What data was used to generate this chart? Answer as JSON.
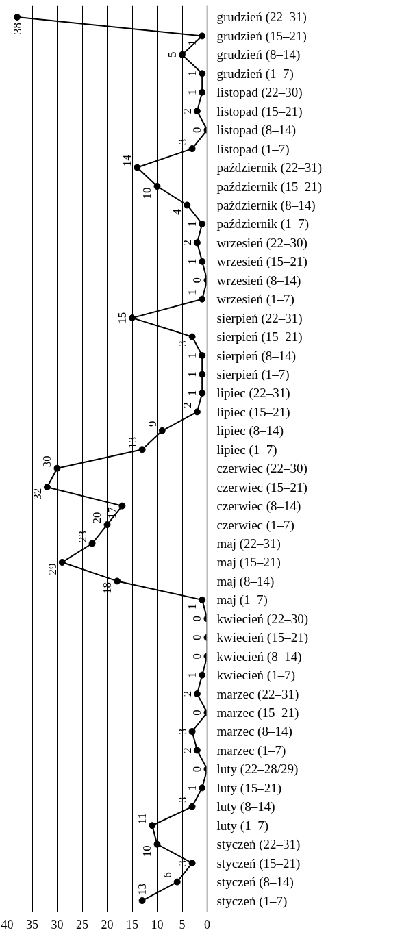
{
  "chart_data": {
    "type": "line",
    "orientation": "horizontal",
    "categories": [
      "grudzień (22–31)",
      "grudzień (15–21)",
      "grudzień (8–14)",
      "grudzień (1–7)",
      "listopad (22–30)",
      "listopad (15–21)",
      "listopad (8–14)",
      "listopad (1–7)",
      "październik (22–31)",
      "październik (15–21)",
      "październik (8–14)",
      "październik (1–7)",
      "wrzesień (22–30)",
      "wrzesień (15–21)",
      "wrzesień (8–14)",
      "wrzesień (1–7)",
      "sierpień (22–31)",
      "sierpień (15–21)",
      "sierpień (8–14)",
      "sierpień (1–7)",
      "lipiec (22–31)",
      "lipiec (15–21)",
      "lipiec (8–14)",
      "lipiec (1–7)",
      "czerwiec (22–30)",
      "czerwiec (15–21)",
      "czerwiec (8–14)",
      "czerwiec (1–7)",
      "maj (22–31)",
      "maj (15–21)",
      "maj (8–14)",
      "maj (1–7)",
      "kwiecień (22–30)",
      "kwiecień (15–21)",
      "kwiecień (8–14)",
      "kwiecień (1–7)",
      "marzec (22–31)",
      "marzec (15–21)",
      "marzec (8–14)",
      "marzec (1–7)",
      "luty (22–28/29)",
      "luty (15–21)",
      "luty (8–14)",
      "luty (1–7)",
      "styczeń (22–31)",
      "styczeń (15–21)",
      "styczeń (8–14)",
      "styczeń (1–7)"
    ],
    "series": [
      {
        "color": "#000000",
        "values": [
          38,
          1,
          5,
          1,
          1,
          2,
          0,
          3,
          14,
          10,
          4,
          1,
          2,
          1,
          0,
          1,
          15,
          3,
          1,
          1,
          1,
          2,
          9,
          13,
          30,
          32,
          17,
          20,
          23,
          29,
          18,
          1,
          0,
          0,
          0,
          1,
          2,
          0,
          3,
          2,
          0,
          1,
          3,
          11,
          10,
          3,
          6,
          13
        ]
      }
    ],
    "xlim": [
      40,
      0
    ],
    "xticks": [
      40,
      35,
      30,
      25,
      20,
      15,
      10,
      5,
      0
    ],
    "grid": "x",
    "marker": "circle",
    "line_style": "solid",
    "data_labels": true
  }
}
